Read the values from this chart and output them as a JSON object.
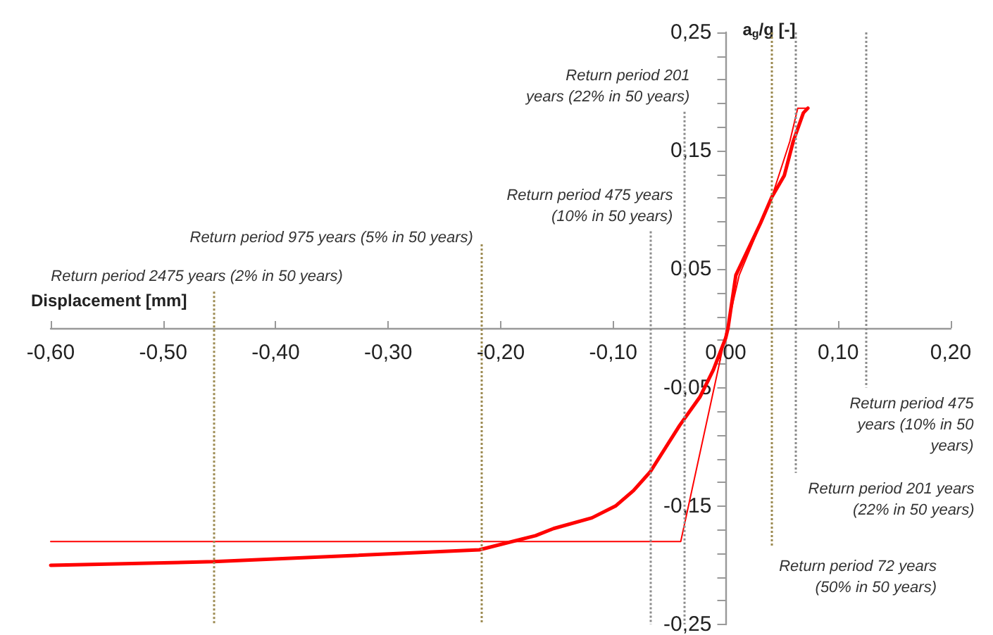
{
  "chart_data": {
    "type": "line",
    "xlabel": "Displacement [mm]",
    "ylabel": "a$_{g}$/g [-]",
    "xlim": [
      -0.6,
      0.2
    ],
    "xticks": [
      {
        "value": -0.6,
        "label": "-0,60"
      },
      {
        "value": -0.5,
        "label": "-0,50"
      },
      {
        "value": -0.4,
        "label": "-0,40"
      },
      {
        "value": -0.3,
        "label": "-0,30"
      },
      {
        "value": -0.2,
        "label": "-0,20"
      },
      {
        "value": -0.1,
        "label": "-0,10"
      },
      {
        "value": 0,
        "label": "0,00"
      },
      {
        "value": 0.1,
        "label": "0,10"
      },
      {
        "value": 0.2,
        "label": "0,20"
      }
    ],
    "ylim": [
      -0.25,
      0.25
    ],
    "yticks": [
      {
        "value": -0.25,
        "label": "-0,25"
      },
      {
        "value": -0.23,
        "label": null
      },
      {
        "value": -0.21,
        "label": null
      },
      {
        "value": -0.19,
        "label": null
      },
      {
        "value": -0.17,
        "label": null
      },
      {
        "value": -0.15,
        "label": "-0,15"
      },
      {
        "value": -0.13,
        "label": null
      },
      {
        "value": -0.11,
        "label": null
      },
      {
        "value": -0.09,
        "label": null
      },
      {
        "value": -0.07,
        "label": null
      },
      {
        "value": -0.05,
        "label": "-0,05"
      },
      {
        "value": -0.03,
        "label": null
      },
      {
        "value": -0.01,
        "label": null
      },
      {
        "value": 0.01,
        "label": null
      },
      {
        "value": 0.03,
        "label": null
      },
      {
        "value": 0.05,
        "label": "0,05"
      },
      {
        "value": 0.07,
        "label": null
      },
      {
        "value": 0.09,
        "label": null
      },
      {
        "value": 0.11,
        "label": null
      },
      {
        "value": 0.13,
        "label": null
      },
      {
        "value": 0.15,
        "label": "0,15"
      },
      {
        "value": 0.17,
        "label": null
      },
      {
        "value": 0.19,
        "label": null
      },
      {
        "value": 0.21,
        "label": null
      },
      {
        "value": 0.23,
        "label": null
      },
      {
        "value": 0.25,
        "label": "0,25"
      }
    ],
    "grid": false,
    "marker": "none",
    "line_style": "solid",
    "series": [
      {
        "color": "#ff0000",
        "x": [
          -0.6,
          -0.455,
          -0.219,
          -0.169,
          -0.153,
          -0.119,
          -0.098,
          -0.082,
          -0.067,
          -0.041,
          -0.023,
          -0.011,
          0,
          0.002,
          0.009,
          0.031,
          0.041,
          0.052,
          0.06,
          0.069,
          0.073
        ],
        "values": [
          -0.2,
          -0.197,
          -0.187,
          -0.175,
          -0.169,
          -0.16,
          -0.15,
          -0.137,
          -0.121,
          -0.082,
          -0.058,
          -0.035,
          -0.008,
          0,
          0.045,
          0.089,
          0.111,
          0.129,
          0.158,
          0.182,
          0.186
        ]
      },
      {
        "color": "#ff0000",
        "x": [
          -0.6,
          -0.04,
          0,
          0.012,
          0.041,
          0.057,
          0.064,
          0.073
        ],
        "values": [
          -0.18,
          -0.18,
          -0.005,
          0.045,
          0.111,
          0.158,
          0.186,
          0.186
        ]
      }
    ],
    "ref_lines": [
      {
        "axis": "x",
        "value": -0.455,
        "label": "Return period 2475 years (2% in 50 years)",
        "color": "#9c8a50",
        "line_style": "dotted"
      },
      {
        "axis": "x",
        "value": -0.217,
        "label": "Return period 975 years (5% in 50 years)",
        "color": "#9c8a50",
        "line_style": "dotted"
      },
      {
        "axis": "x",
        "value": -0.067,
        "label": "Return period 475 years (10% in 50 years)",
        "color": "#8c8c8c",
        "line_style": "dotted"
      },
      {
        "axis": "x",
        "value": -0.037,
        "label": "Return period 201 years (22% in 50 years)",
        "color": "#8c8c8c",
        "line_style": "dotted"
      },
      {
        "axis": "x",
        "value": 0.041,
        "label": "Return period 72 years (50% in 50 years)",
        "color": "#9c8a50",
        "line_style": "dotted"
      },
      {
        "axis": "x",
        "value": 0.062,
        "label": "Return period 201 years (22% in 50 years)",
        "color": "#8c8c8c",
        "line_style": "dotted"
      },
      {
        "axis": "x",
        "value": 0.124,
        "label": "Return period 475 years (10% in 50 years)",
        "color": "#8c8c8c",
        "line_style": "dotted"
      }
    ]
  }
}
